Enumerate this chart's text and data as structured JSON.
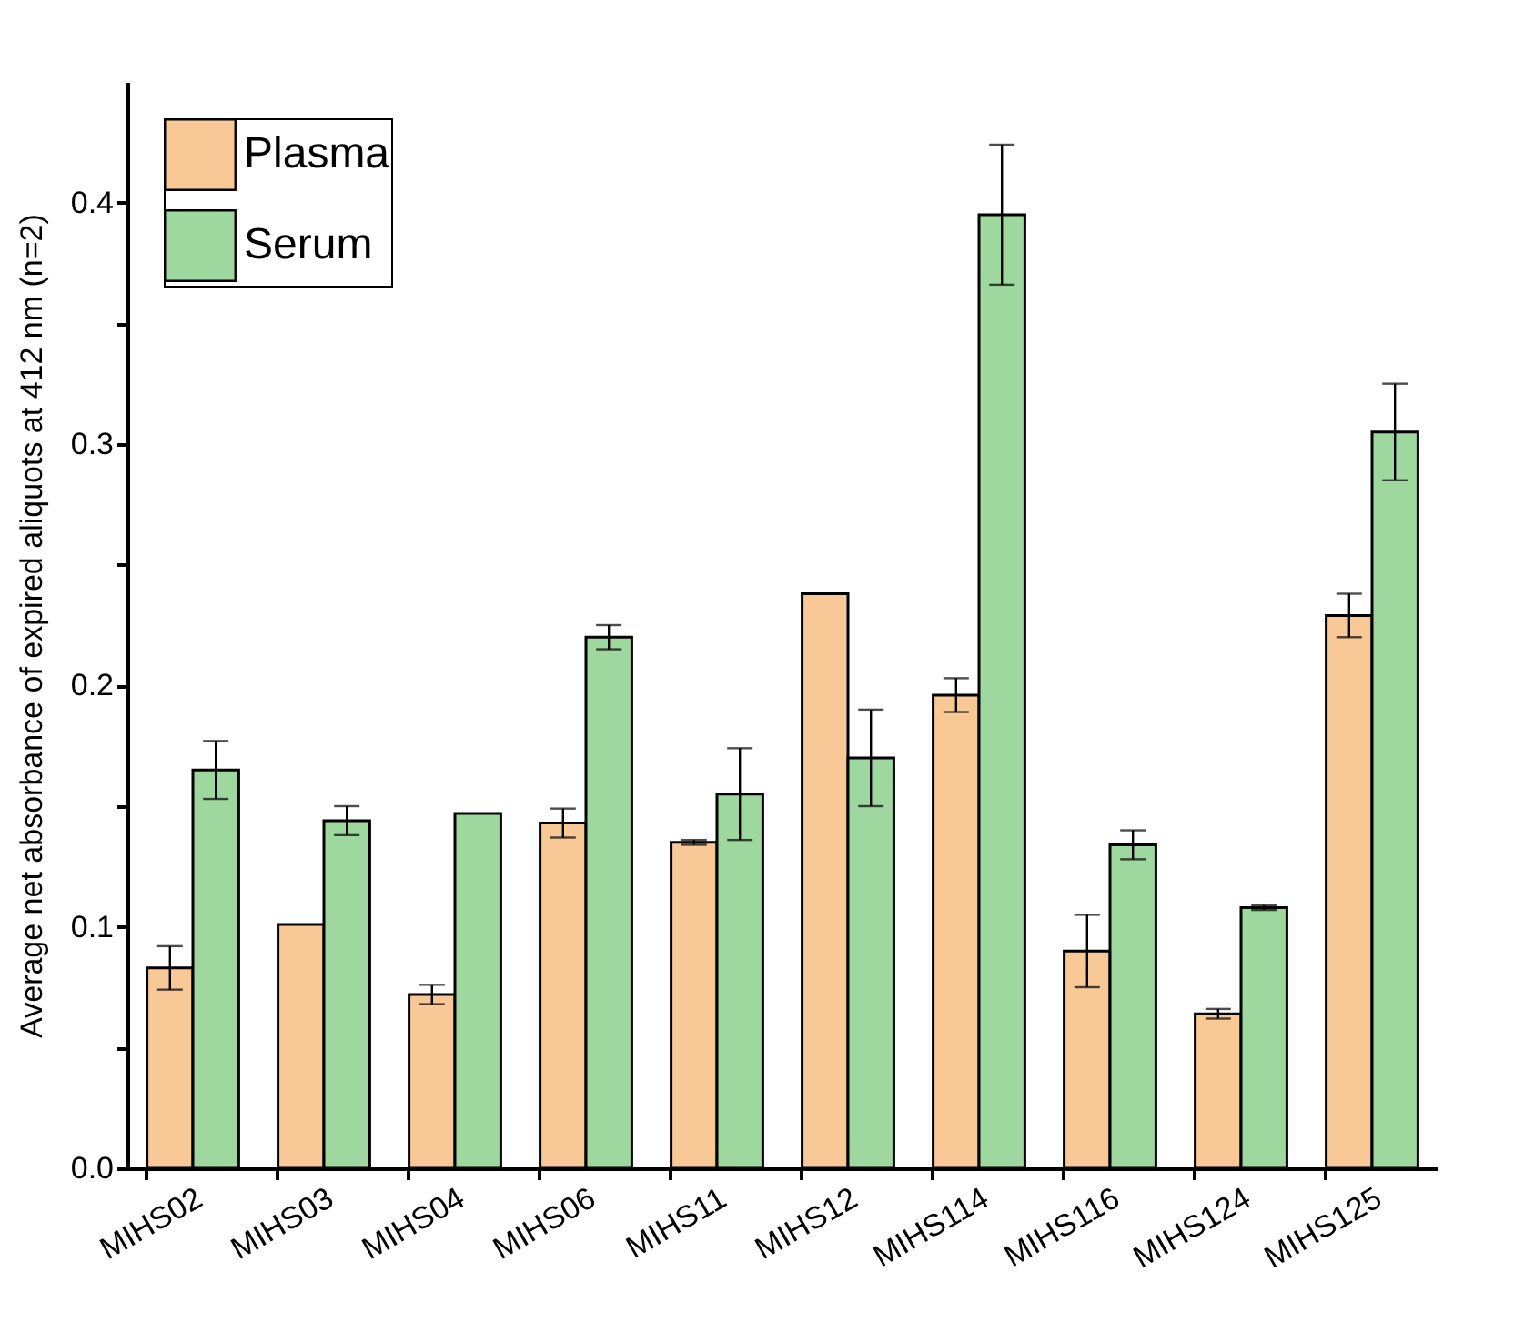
{
  "chart_data": {
    "type": "bar",
    "ylabel": "Average net absorbance of expired aliquots at 412 nm (n=2)",
    "categories": [
      "MIHS02",
      "MIHS03",
      "MIHS04",
      "MIHS06",
      "MIHS11",
      "MIHS12",
      "MIHS114",
      "MIHS116",
      "MIHS124",
      "MIHS125"
    ],
    "series": [
      {
        "name": "Plasma",
        "color": "#f9c897",
        "values": [
          0.083,
          0.101,
          0.072,
          0.143,
          0.135,
          0.238,
          0.196,
          0.09,
          0.064,
          0.229
        ],
        "errors": [
          0.009,
          null,
          0.004,
          0.006,
          0.001,
          null,
          0.007,
          0.015,
          0.002,
          0.009
        ]
      },
      {
        "name": "Serum",
        "color": "#9fd89f",
        "values": [
          0.165,
          0.144,
          0.147,
          0.22,
          0.155,
          0.17,
          0.395,
          0.134,
          0.108,
          0.305
        ],
        "errors": [
          0.012,
          0.006,
          null,
          0.005,
          0.019,
          0.02,
          0.029,
          0.006,
          0.001,
          0.02
        ]
      }
    ],
    "ylim": [
      0,
      0.45
    ],
    "yticks": [
      "0.0",
      {
        "value": 0.05,
        "label": null
      },
      0.1,
      {
        "value": 0.15,
        "label": null
      },
      0.2,
      {
        "value": 0.25,
        "label": null
      },
      0.3,
      {
        "value": 0.35,
        "label": null
      },
      0.4
    ],
    "legend": "top left",
    "grid": false
  }
}
